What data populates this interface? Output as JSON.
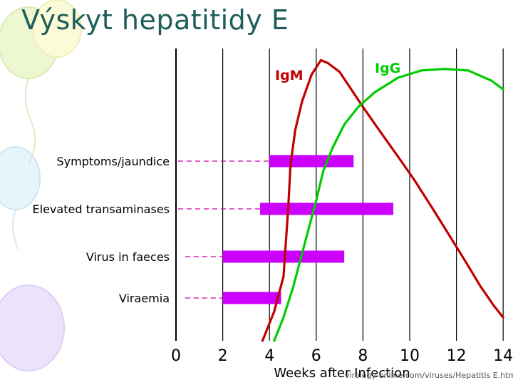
{
  "slide": {
    "title": "Výskyt hepatitidy E",
    "source": "virology-online.com/viruses/Hepatitis E.htm"
  },
  "chart_data": {
    "type": "line",
    "xlabel": "Weeks after Infection",
    "xlim": [
      0,
      14
    ],
    "x_ticks": [
      0,
      2,
      4,
      6,
      8,
      10,
      12,
      14
    ],
    "ylim": [
      0,
      100
    ],
    "grid": "vertical lines at every 2 weeks",
    "legend": "labels placed next to curves (top)",
    "series": [
      {
        "name": "IgM",
        "color": "#c00000",
        "points": [
          [
            3.7,
            0
          ],
          [
            4.2,
            10
          ],
          [
            4.6,
            22
          ],
          [
            4.8,
            45
          ],
          [
            4.9,
            60
          ],
          [
            5.1,
            72
          ],
          [
            5.4,
            82
          ],
          [
            5.8,
            91
          ],
          [
            6.2,
            96
          ],
          [
            6.5,
            95
          ],
          [
            7.0,
            92
          ],
          [
            7.5,
            86
          ],
          [
            8.0,
            80
          ],
          [
            8.7,
            72
          ],
          [
            9.5,
            63
          ],
          [
            10.2,
            55
          ],
          [
            11.0,
            45
          ],
          [
            11.7,
            36
          ],
          [
            12.4,
            27
          ],
          [
            13.0,
            19
          ],
          [
            13.6,
            12
          ],
          [
            14.0,
            8
          ]
        ]
      },
      {
        "name": "IgG",
        "color": "#00cc00",
        "points": [
          [
            4.2,
            0
          ],
          [
            4.6,
            8
          ],
          [
            5.0,
            18
          ],
          [
            5.5,
            33
          ],
          [
            6.0,
            48
          ],
          [
            6.3,
            58
          ],
          [
            6.7,
            66
          ],
          [
            7.2,
            74
          ],
          [
            7.8,
            80
          ],
          [
            8.5,
            85
          ],
          [
            9.5,
            90
          ],
          [
            10.5,
            92.5
          ],
          [
            11.5,
            93
          ],
          [
            12.5,
            92.5
          ],
          [
            13.5,
            89
          ],
          [
            14.0,
            86
          ]
        ]
      }
    ],
    "bars": [
      {
        "label": "Symptoms/jaundice",
        "start": 4.0,
        "end": 7.6,
        "dash_from": 0.0
      },
      {
        "label": "Elevated transaminases",
        "start": 3.6,
        "end": 9.3,
        "dash_from": 0.0
      },
      {
        "label": "Virus in faeces",
        "start": 2.0,
        "end": 7.2,
        "dash_from": 0.3
      },
      {
        "label": "Viraemia",
        "start": 2.0,
        "end": 4.5,
        "dash_from": 0.3
      }
    ],
    "bar_color": "#cc00ff",
    "line_color_dash": "#cc00aa"
  }
}
